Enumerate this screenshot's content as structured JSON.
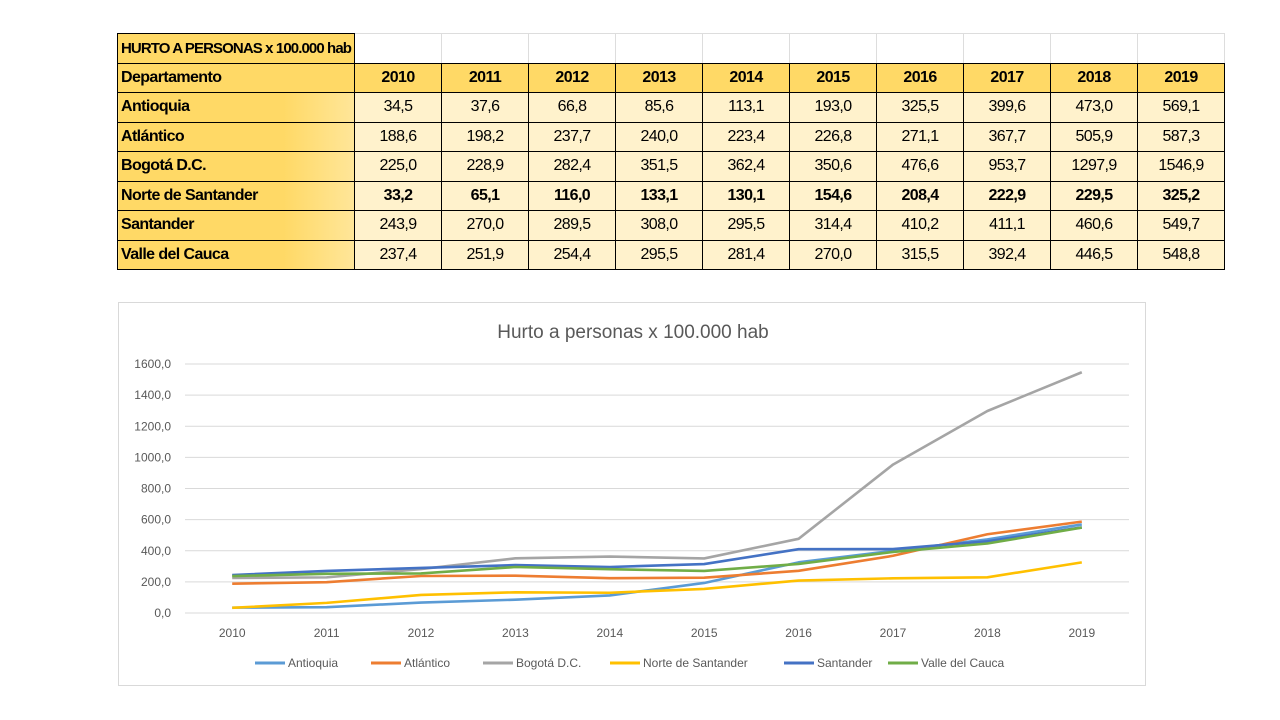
{
  "table": {
    "title": "HURTO A PERSONAS x 100.000 hab",
    "header_label": "Departamento",
    "years": [
      "2010",
      "2011",
      "2012",
      "2013",
      "2014",
      "2015",
      "2016",
      "2017",
      "2018",
      "2019"
    ],
    "rows": [
      {
        "name": "Antioquia",
        "values": [
          "34,5",
          "37,6",
          "66,8",
          "85,6",
          "113,1",
          "193,0",
          "325,5",
          "399,6",
          "473,0",
          "569,1"
        ],
        "bold": false
      },
      {
        "name": "Atlántico",
        "values": [
          "188,6",
          "198,2",
          "237,7",
          "240,0",
          "223,4",
          "226,8",
          "271,1",
          "367,7",
          "505,9",
          "587,3"
        ],
        "bold": false
      },
      {
        "name": "Bogotá D.C.",
        "values": [
          "225,0",
          "228,9",
          "282,4",
          "351,5",
          "362,4",
          "350,6",
          "476,6",
          "953,7",
          "1297,9",
          "1546,9"
        ],
        "bold": false
      },
      {
        "name": "Norte de Santander",
        "values": [
          "33,2",
          "65,1",
          "116,0",
          "133,1",
          "130,1",
          "154,6",
          "208,4",
          "222,9",
          "229,5",
          "325,2"
        ],
        "bold": true
      },
      {
        "name": "Santander",
        "values": [
          "243,9",
          "270,0",
          "289,5",
          "308,0",
          "295,5",
          "314,4",
          "410,2",
          "411,1",
          "460,6",
          "549,7"
        ],
        "bold": false
      },
      {
        "name": "Valle del Cauca",
        "values": [
          "237,4",
          "251,9",
          "254,4",
          "295,5",
          "281,4",
          "270,0",
          "315,5",
          "392,4",
          "446,5",
          "548,8"
        ],
        "bold": false
      }
    ]
  },
  "chart_data": {
    "type": "line",
    "title": "Hurto a personas x 100.000 hab",
    "x": [
      "2010",
      "2011",
      "2012",
      "2013",
      "2014",
      "2015",
      "2016",
      "2017",
      "2018",
      "2019"
    ],
    "ylim": [
      0,
      1600
    ],
    "yticks": [
      0,
      200,
      400,
      600,
      800,
      1000,
      1200,
      1400,
      1600
    ],
    "ytick_labels": [
      "0,0",
      "200,0",
      "400,0",
      "600,0",
      "800,0",
      "1000,0",
      "1200,0",
      "1400,0",
      "1600,0"
    ],
    "grid": true,
    "legend": "bottom",
    "series": [
      {
        "name": "Antioquia",
        "color": "#5B9BD5",
        "values": [
          34.5,
          37.6,
          66.8,
          85.6,
          113.1,
          193.0,
          325.5,
          399.6,
          473.0,
          569.1
        ]
      },
      {
        "name": "Atlántico",
        "color": "#ED7D31",
        "values": [
          188.6,
          198.2,
          237.7,
          240.0,
          223.4,
          226.8,
          271.1,
          367.7,
          505.9,
          587.3
        ]
      },
      {
        "name": "Bogotá D.C.",
        "color": "#A5A5A5",
        "values": [
          225.0,
          228.9,
          282.4,
          351.5,
          362.4,
          350.6,
          476.6,
          953.7,
          1297.9,
          1546.9
        ]
      },
      {
        "name": "Norte de Santander",
        "color": "#FFC000",
        "values": [
          33.2,
          65.1,
          116.0,
          133.1,
          130.1,
          154.6,
          208.4,
          222.9,
          229.5,
          325.2
        ]
      },
      {
        "name": "Santander",
        "color": "#4472C4",
        "values": [
          243.9,
          270.0,
          289.5,
          308.0,
          295.5,
          314.4,
          410.2,
          411.1,
          460.6,
          549.7
        ]
      },
      {
        "name": "Valle del Cauca",
        "color": "#70AD47",
        "values": [
          237.4,
          251.9,
          254.4,
          295.5,
          281.4,
          270.0,
          315.5,
          392.4,
          446.5,
          548.8
        ]
      }
    ]
  }
}
